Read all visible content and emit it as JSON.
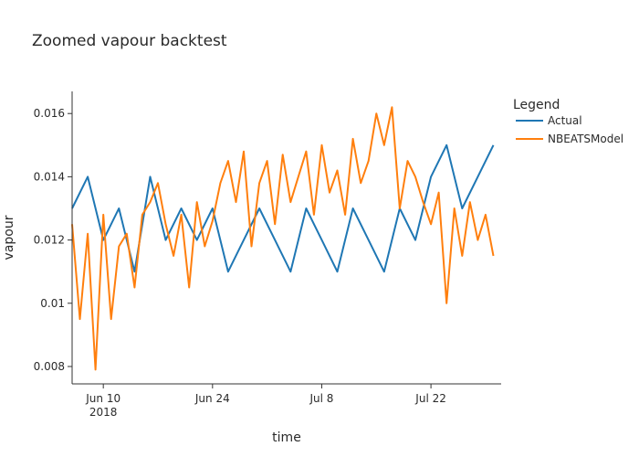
{
  "chart_data": {
    "type": "line",
    "title": "Zoomed vapour backtest",
    "xlabel": "time",
    "ylabel": "vapour",
    "x_ticks": [
      {
        "date": "2018-06-10",
        "label": "Jun 10",
        "sublabel": "2018"
      },
      {
        "date": "2018-06-24",
        "label": "Jun 24",
        "sublabel": ""
      },
      {
        "date": "2018-07-08",
        "label": "Jul 8",
        "sublabel": ""
      },
      {
        "date": "2018-07-22",
        "label": "Jul 22",
        "sublabel": ""
      }
    ],
    "xlim": [
      "2018-06-06T00:00",
      "2018-07-31T00:00"
    ],
    "y_ticks": [
      {
        "value": 0.008,
        "label": "0.008"
      },
      {
        "value": 0.01,
        "label": "0.01"
      },
      {
        "value": 0.012,
        "label": "0.012"
      },
      {
        "value": 0.014,
        "label": "0.014"
      },
      {
        "value": 0.016,
        "label": "0.016"
      }
    ],
    "ylim": [
      0.00745,
      0.0167
    ],
    "grid": false,
    "legend": {
      "title": "Legend",
      "placement": "right"
    },
    "series": [
      {
        "name": "Actual",
        "color": "#1f77b4",
        "x": [
          "2018-06-06T00:00",
          "2018-06-08T00:00",
          "2018-06-10T00:00",
          "2018-06-12T00:00",
          "2018-06-14T00:00",
          "2018-06-16T00:00",
          "2018-06-18T00:00",
          "2018-06-20T00:00",
          "2018-06-22T00:00",
          "2018-06-24T00:00",
          "2018-06-26T00:00",
          "2018-06-28T00:00",
          "2018-06-30T00:00",
          "2018-07-02T00:00",
          "2018-07-04T00:00",
          "2018-07-06T00:00",
          "2018-07-08T00:00",
          "2018-07-10T00:00",
          "2018-07-12T00:00",
          "2018-07-14T00:00",
          "2018-07-16T00:00",
          "2018-07-18T00:00",
          "2018-07-20T00:00",
          "2018-07-22T00:00",
          "2018-07-24T00:00",
          "2018-07-26T00:00",
          "2018-07-28T00:00",
          "2018-07-30T00:00"
        ],
        "values": [
          0.013,
          0.014,
          0.012,
          0.013,
          0.011,
          0.014,
          0.012,
          0.013,
          0.012,
          0.013,
          0.011,
          0.012,
          0.013,
          0.012,
          0.011,
          0.013,
          0.012,
          0.011,
          0.013,
          0.012,
          0.011,
          0.013,
          0.012,
          0.014,
          0.015,
          0.013,
          0.014,
          0.015
        ]
      },
      {
        "name": "NBEATSModel",
        "color": "#ff7f0e",
        "x": [
          "2018-06-06T00:00",
          "2018-06-07T00:00",
          "2018-06-08T00:00",
          "2018-06-09T00:00",
          "2018-06-10T00:00",
          "2018-06-11T00:00",
          "2018-06-12T00:00",
          "2018-06-13T00:00",
          "2018-06-14T00:00",
          "2018-06-15T00:00",
          "2018-06-16T00:00",
          "2018-06-17T00:00",
          "2018-06-18T00:00",
          "2018-06-19T00:00",
          "2018-06-20T00:00",
          "2018-06-21T00:00",
          "2018-06-22T00:00",
          "2018-06-23T00:00",
          "2018-06-24T00:00",
          "2018-06-25T00:00",
          "2018-06-26T00:00",
          "2018-06-27T00:00",
          "2018-06-28T00:00",
          "2018-06-29T00:00",
          "2018-06-30T00:00",
          "2018-07-01T00:00",
          "2018-07-02T00:00",
          "2018-07-03T00:00",
          "2018-07-04T00:00",
          "2018-07-05T00:00",
          "2018-07-06T00:00",
          "2018-07-07T00:00",
          "2018-07-08T00:00",
          "2018-07-09T00:00",
          "2018-07-10T00:00",
          "2018-07-11T00:00",
          "2018-07-12T00:00",
          "2018-07-13T00:00",
          "2018-07-14T00:00",
          "2018-07-15T00:00",
          "2018-07-16T00:00",
          "2018-07-17T00:00",
          "2018-07-18T00:00",
          "2018-07-19T00:00",
          "2018-07-20T00:00",
          "2018-07-21T00:00",
          "2018-07-22T00:00",
          "2018-07-23T00:00",
          "2018-07-24T00:00",
          "2018-07-25T00:00",
          "2018-07-26T00:00",
          "2018-07-27T00:00",
          "2018-07-28T00:00",
          "2018-07-29T00:00",
          "2018-07-30T00:00"
        ],
        "values": [
          0.0125,
          0.0095,
          0.0122,
          0.0079,
          0.0128,
          0.0095,
          0.0118,
          0.0122,
          0.0105,
          0.0128,
          0.0132,
          0.0138,
          0.0125,
          0.0115,
          0.0128,
          0.0105,
          0.0132,
          0.0118,
          0.0126,
          0.0138,
          0.0145,
          0.0132,
          0.0148,
          0.0118,
          0.0138,
          0.0145,
          0.0125,
          0.0147,
          0.0132,
          0.014,
          0.0148,
          0.0128,
          0.015,
          0.0135,
          0.0142,
          0.0128,
          0.0152,
          0.0138,
          0.0145,
          0.016,
          0.015,
          0.0162,
          0.013,
          0.0145,
          0.014,
          0.0132,
          0.0125,
          0.0135,
          0.01,
          0.013,
          0.0115,
          0.0132,
          0.012,
          0.0128,
          0.0115
        ]
      }
    ]
  }
}
